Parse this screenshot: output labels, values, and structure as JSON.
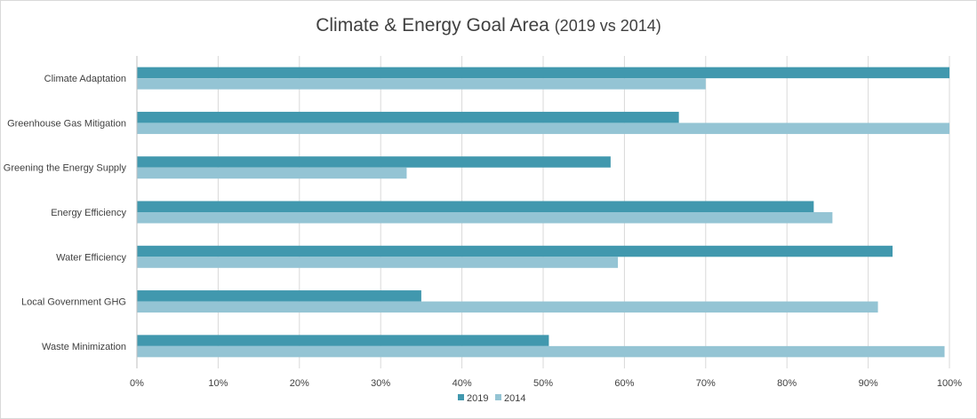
{
  "chart_data": {
    "type": "bar",
    "orientation": "horizontal",
    "title": "Climate & Energy Goal Area",
    "subtitle": "(2019 vs 2014)",
    "xlabel": "",
    "ylabel": "",
    "xlim": [
      0,
      100
    ],
    "x_ticks": [
      "0%",
      "10%",
      "20%",
      "30%",
      "40%",
      "50%",
      "60%",
      "70%",
      "80%",
      "90%",
      "100%"
    ],
    "grid": "vertical",
    "legend_position": "bottom",
    "categories": [
      "Climate Adaptation",
      "Greenhouse Gas Mitigation",
      "Greening the Energy Supply",
      "Energy Efficiency",
      "Water Efficiency",
      "Local Government GHG",
      "Waste Minimization"
    ],
    "series": [
      {
        "name": "2019",
        "color": "#4198ae",
        "values": [
          100,
          66.7,
          58.3,
          83.3,
          93,
          35,
          50.7
        ]
      },
      {
        "name": "2014",
        "color": "#94c4d4",
        "values": [
          70,
          100,
          33.2,
          85.6,
          59.2,
          91.2,
          99.4
        ]
      }
    ]
  }
}
